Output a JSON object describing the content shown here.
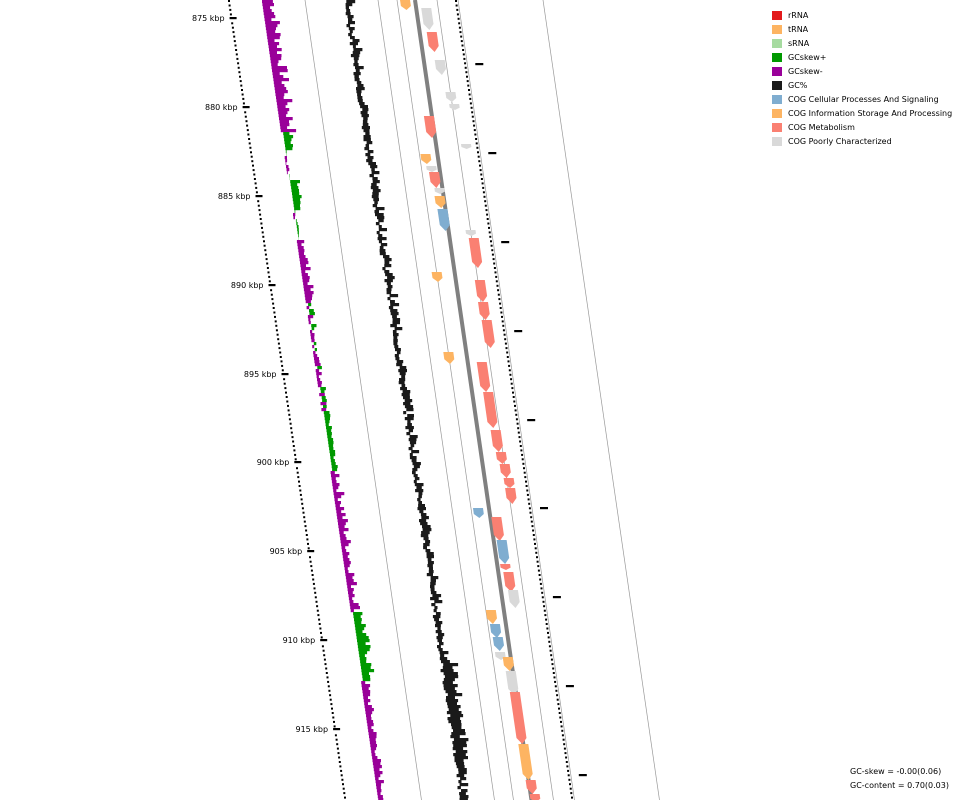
{
  "ruler": {
    "labels": [
      "875 kbp",
      "880 kbp",
      "885 kbp",
      "890 kbp",
      "895 kbp",
      "900 kbp",
      "905 kbp",
      "910 kbp",
      "915 kbp"
    ]
  },
  "legend": [
    {
      "label": "rRNA",
      "color": "#e31a1c"
    },
    {
      "label": "tRNA",
      "color": "#fdb462"
    },
    {
      "label": "sRNA",
      "color": "#a6dba0"
    },
    {
      "label": "GCskew+",
      "color": "#009900"
    },
    {
      "label": "GCskew-",
      "color": "#990099"
    },
    {
      "label": "GC%",
      "color": "#1a1a1a"
    },
    {
      "label": "COG Cellular Processes And Signaling",
      "color": "#7fadd0"
    },
    {
      "label": "COG Information Storage And Processing",
      "color": "#fdb462"
    },
    {
      "label": "COG Metabolism",
      "color": "#fa8072"
    },
    {
      "label": "COG Poorly Characterized",
      "color": "#d9d9d9"
    }
  ],
  "stats": {
    "gc_skew": "GC-skew = -0.00(0.06)",
    "gc_content": "GC-content = 0.70(0.03)"
  },
  "colors": {
    "backbone": "#808080",
    "ring_line": "#999999"
  }
}
